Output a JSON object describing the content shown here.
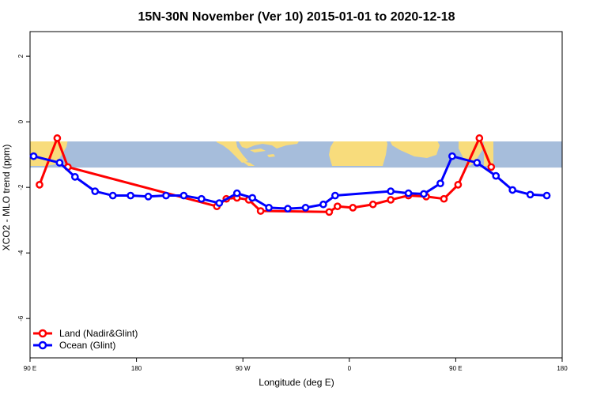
{
  "chart_data": {
    "type": "line",
    "title": "15N-30N November (Ver 10)   2015-01-01 to 2020-12-18",
    "xlabel": "Longitude (deg E)",
    "ylabel": "XCO2 - MLO trend (ppm)",
    "xlim": [
      90,
      540
    ],
    "ylim": [
      -7.2,
      2.75
    ],
    "x_ticks": [
      {
        "value": 90,
        "label": "90 E"
      },
      {
        "value": 180,
        "label": "180"
      },
      {
        "value": 270,
        "label": "90 W"
      },
      {
        "value": 360,
        "label": "0"
      },
      {
        "value": 450,
        "label": "90 E"
      },
      {
        "value": 540,
        "label": "180"
      }
    ],
    "y_ticks": [
      {
        "value": 2,
        "label": "2"
      },
      {
        "value": 0,
        "label": "0"
      },
      {
        "value": -2,
        "label": "-2"
      },
      {
        "value": -4,
        "label": "-4"
      },
      {
        "value": -6,
        "label": "-6"
      }
    ],
    "map_band": {
      "y_top": -0.6,
      "y_bottom": -1.4,
      "ocean_color": "#a6bddb",
      "land_color": "#f8dc7c"
    },
    "legend_position": "bottom-left",
    "series": [
      {
        "name": "Land (Nadir&Glint)",
        "color": "#ff0000",
        "points": [
          [
            98,
            -1.92
          ],
          [
            113,
            -0.5
          ],
          [
            122,
            -1.38
          ],
          [
            248,
            -2.58
          ],
          [
            256,
            -2.35
          ],
          [
            265,
            -2.32
          ],
          [
            275,
            -2.38
          ],
          [
            285,
            -2.72
          ],
          [
            343,
            -2.75
          ],
          [
            350,
            -2.58
          ],
          [
            363,
            -2.62
          ],
          [
            380,
            -2.52
          ],
          [
            395,
            -2.38
          ],
          [
            410,
            -2.25
          ],
          [
            425,
            -2.28
          ],
          [
            440,
            -2.35
          ],
          [
            452,
            -1.92
          ],
          [
            470,
            -0.5
          ],
          [
            480,
            -1.38
          ]
        ]
      },
      {
        "name": "Ocean (Glint)",
        "color": "#0000ff",
        "points": [
          [
            93,
            -1.05
          ],
          [
            115,
            -1.25
          ],
          [
            128,
            -1.68
          ],
          [
            145,
            -2.12
          ],
          [
            160,
            -2.25
          ],
          [
            175,
            -2.25
          ],
          [
            190,
            -2.28
          ],
          [
            205,
            -2.25
          ],
          [
            220,
            -2.25
          ],
          [
            235,
            -2.35
          ],
          [
            250,
            -2.48
          ],
          [
            265,
            -2.18
          ],
          [
            278,
            -2.32
          ],
          [
            292,
            -2.62
          ],
          [
            308,
            -2.65
          ],
          [
            323,
            -2.62
          ],
          [
            338,
            -2.52
          ],
          [
            348,
            -2.25
          ],
          [
            395,
            -2.12
          ],
          [
            410,
            -2.18
          ],
          [
            423,
            -2.2
          ],
          [
            437,
            -1.88
          ],
          [
            447,
            -1.05
          ],
          [
            468,
            -1.25
          ],
          [
            484,
            -1.65
          ],
          [
            498,
            -2.08
          ],
          [
            513,
            -2.22
          ],
          [
            527,
            -2.25
          ]
        ]
      }
    ]
  }
}
